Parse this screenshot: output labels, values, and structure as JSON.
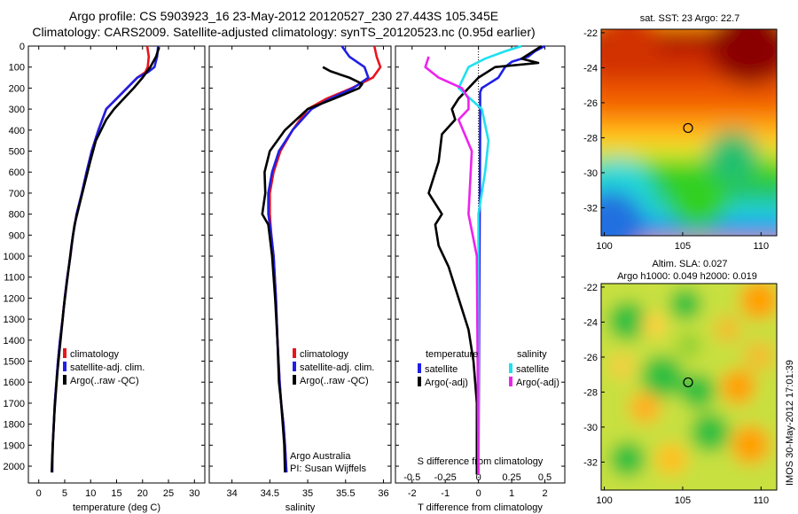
{
  "page": {
    "title_line1": "Argo profile: CS 5903923_16 23-May-2012 20120527_230 27.443S 105.345E",
    "title_line2": "Climatology: CARS2009. Satellite-adjusted climatology: synTS_20120523.nc (0.95d earlier)",
    "timestamp": "IMOS 30-May-2012 17:01:39",
    "credit_line1": "Argo Australia",
    "credit_line2": "PI: Susan Wijffels"
  },
  "colors": {
    "red": "#e8141e",
    "blue": "#1f1fe6",
    "black": "#000000",
    "cyan": "#20e0f0",
    "magenta": "#ee22ee"
  },
  "chart_data": [
    {
      "type": "line",
      "id": "temperature",
      "xlabel": "temperature (deg C)",
      "ylabel": "",
      "xlim": [
        -2,
        32
      ],
      "ylim": [
        2080,
        0
      ],
      "x_ticks": [
        0,
        5,
        10,
        15,
        20,
        25,
        30
      ],
      "y_ticks": [
        0,
        100,
        200,
        300,
        400,
        500,
        600,
        700,
        800,
        900,
        1000,
        1100,
        1200,
        1300,
        1400,
        1500,
        1600,
        1700,
        1800,
        1900,
        2000
      ],
      "legend": [
        "climatology",
        "satellite-adj. clim.",
        "Argo(..raw -QC)"
      ],
      "series": [
        {
          "name": "climatology",
          "color": "red",
          "x": [
            20.9,
            21.2,
            21.0,
            20.5,
            19.0,
            17.0,
            15.0,
            13.0,
            11.5,
            10.2,
            9.2,
            8.3,
            7.3,
            6.6,
            6.1,
            5.5,
            5.0,
            4.6,
            4.1,
            3.7,
            3.4,
            3.1,
            2.9,
            2.7,
            2.6
          ],
          "depth": [
            0,
            50,
            100,
            125,
            150,
            200,
            250,
            300,
            400,
            500,
            600,
            700,
            800,
            900,
            1000,
            1100,
            1200,
            1300,
            1400,
            1500,
            1600,
            1700,
            1800,
            1900,
            2030
          ]
        },
        {
          "name": "satellite-adj. clim.",
          "color": "blue",
          "x": [
            23.0,
            22.8,
            22.3,
            21.0,
            19.0,
            17.0,
            15.0,
            13.0,
            11.5,
            10.2,
            9.2,
            8.3,
            7.3,
            6.6,
            6.1,
            5.5,
            5.0,
            4.6,
            4.1,
            3.7,
            3.4,
            3.1,
            2.9,
            2.7,
            2.6
          ],
          "depth": [
            0,
            50,
            100,
            125,
            150,
            200,
            250,
            300,
            400,
            500,
            600,
            700,
            800,
            900,
            1000,
            1100,
            1200,
            1300,
            1400,
            1500,
            1600,
            1700,
            1800,
            1900,
            2030
          ]
        },
        {
          "name": "Argo(..raw -QC)",
          "color": "black",
          "x": [
            23.2,
            22.6,
            21.5,
            20.0,
            18.3,
            16.0,
            14.5,
            13.0,
            11.0,
            9.9,
            8.9,
            7.9,
            6.9,
            6.3,
            5.8,
            5.3,
            4.8,
            4.4,
            4.0,
            3.6,
            3.3,
            3.0,
            2.8,
            2.6,
            2.5
          ],
          "depth": [
            5,
            50,
            100,
            150,
            200,
            260,
            300,
            350,
            450,
            550,
            650,
            750,
            850,
            950,
            1050,
            1150,
            1250,
            1350,
            1450,
            1550,
            1650,
            1750,
            1850,
            1950,
            2030
          ]
        }
      ]
    },
    {
      "type": "line",
      "id": "salinity",
      "xlabel": "salinity",
      "ylabel": "",
      "xlim": [
        33.7,
        36.1
      ],
      "ylim": [
        2080,
        0
      ],
      "x_ticks": [
        34,
        34.5,
        35,
        35.5,
        36
      ],
      "legend": [
        "climatology",
        "satellite-adj. clim.",
        "Argo(..raw -QC)"
      ],
      "series": [
        {
          "name": "climatology",
          "color": "red",
          "x": [
            35.88,
            35.91,
            35.96,
            35.86,
            35.58,
            35.25,
            35.0,
            34.8,
            34.64,
            34.55,
            34.5,
            34.5,
            34.52,
            34.55,
            34.58,
            34.6,
            34.63,
            34.65,
            34.68,
            34.7,
            34.72
          ],
          "depth": [
            0,
            50,
            100,
            150,
            200,
            250,
            300,
            400,
            500,
            600,
            700,
            800,
            900,
            1000,
            1200,
            1400,
            1600,
            1700,
            1800,
            1900,
            2030
          ]
        },
        {
          "name": "satellite-adj. clim.",
          "color": "blue",
          "x": [
            35.45,
            35.55,
            35.75,
            35.8,
            35.6,
            35.3,
            35.05,
            34.8,
            34.62,
            34.53,
            34.48,
            34.48,
            34.52,
            34.55,
            34.58,
            34.6,
            34.63,
            34.65,
            34.68,
            34.7,
            34.72
          ],
          "depth": [
            0,
            50,
            100,
            150,
            200,
            250,
            300,
            400,
            500,
            600,
            700,
            800,
            900,
            1000,
            1200,
            1400,
            1600,
            1700,
            1800,
            1900,
            2030
          ]
        },
        {
          "name": "Argo(..raw -QC)",
          "color": "black",
          "x": [
            35.2,
            35.3,
            35.55,
            35.72,
            35.68,
            35.35,
            35.0,
            34.7,
            34.5,
            34.43,
            34.44,
            34.4,
            34.48,
            34.53,
            34.57,
            34.6,
            34.62,
            34.65,
            34.67,
            34.69,
            34.7
          ],
          "depth": [
            100,
            120,
            150,
            180,
            200,
            250,
            300,
            400,
            500,
            600,
            700,
            800,
            850,
            1000,
            1200,
            1400,
            1600,
            1700,
            1800,
            1900,
            2030
          ]
        }
      ]
    },
    {
      "type": "line",
      "id": "difference",
      "xlabel": "T difference from climatology",
      "x2label": "S difference from climatology",
      "ylabel": "",
      "xlim": [
        -2.5,
        2.6
      ],
      "ylim": [
        2080,
        0
      ],
      "x_ticks": [
        -2,
        -1,
        0,
        1,
        2
      ],
      "x2_ticks": [
        "-0.5",
        "-0.25",
        "0",
        "0.25",
        "0.5"
      ],
      "legend_temperature_title": "temperature",
      "legend_salinity_title": "salinity",
      "legend": [
        "satellite",
        "Argo(-adj)",
        "satellite",
        "Argo(-adj)"
      ],
      "series": [
        {
          "name": "temperature satellite",
          "color": "blue",
          "x": [
            2.0,
            1.7,
            1.5,
            1.0,
            0.8,
            0.6,
            0.3,
            0.1,
            0.05,
            0.05,
            0.05,
            0.0
          ],
          "depth": [
            0,
            25,
            50,
            75,
            100,
            150,
            180,
            200,
            220,
            260,
            400,
            2040
          ]
        },
        {
          "name": "temperature Argo(-adj)",
          "color": "black",
          "x": [
            1.9,
            1.3,
            1.8,
            0.5,
            0.0,
            -0.6,
            -0.8,
            -0.7,
            -1.1,
            -1.2,
            -1.5,
            -1.1,
            -1.3,
            -1.2,
            -0.9,
            -0.7,
            -0.5,
            -0.3,
            -0.15,
            -0.05,
            -0.05
          ],
          "depth": [
            0,
            60,
            80,
            100,
            150,
            250,
            300,
            350,
            420,
            550,
            700,
            800,
            850,
            950,
            1050,
            1150,
            1250,
            1350,
            1500,
            1700,
            2040
          ]
        },
        {
          "name": "salinity satellite",
          "color": "cyan",
          "x": [
            1.3,
            0.8,
            0.2,
            -0.3,
            -0.6,
            0.1,
            0.3,
            0.2,
            0.0,
            0.0
          ],
          "depth": [
            0,
            25,
            60,
            100,
            200,
            300,
            450,
            600,
            800,
            2040
          ]
        },
        {
          "name": "salinity Argo(-adj)",
          "color": "magenta",
          "x": [
            -1.5,
            -1.6,
            -1.2,
            -0.5,
            -0.3,
            -0.3,
            -0.6,
            -0.2,
            -0.3,
            -0.05,
            0.0
          ],
          "depth": [
            50,
            100,
            150,
            200,
            250,
            300,
            350,
            500,
            800,
            1000,
            2040
          ]
        }
      ]
    },
    {
      "type": "heatmap",
      "id": "sst-map",
      "title": "sat. SST: 23 Argo: 22.7",
      "x_ticks": [
        100,
        105,
        110
      ],
      "y_ticks": [
        -22,
        -24,
        -26,
        -28,
        -30,
        -32
      ],
      "xlim": [
        99.8,
        111
      ],
      "ylim": [
        -33.6,
        -21.8
      ],
      "marker": {
        "lon": 105.345,
        "lat": -27.443
      }
    },
    {
      "type": "heatmap",
      "id": "sla-map",
      "title": "Altim. SLA: 0.027",
      "subtitle": "Argo h1000: 0.049 h2000: 0.019",
      "x_ticks": [
        100,
        105,
        110
      ],
      "y_ticks": [
        -22,
        -24,
        -26,
        -28,
        -30,
        -32
      ],
      "xlim": [
        99.8,
        111
      ],
      "ylim": [
        -33.6,
        -21.8
      ],
      "marker": {
        "lon": 105.345,
        "lat": -27.443
      }
    }
  ]
}
